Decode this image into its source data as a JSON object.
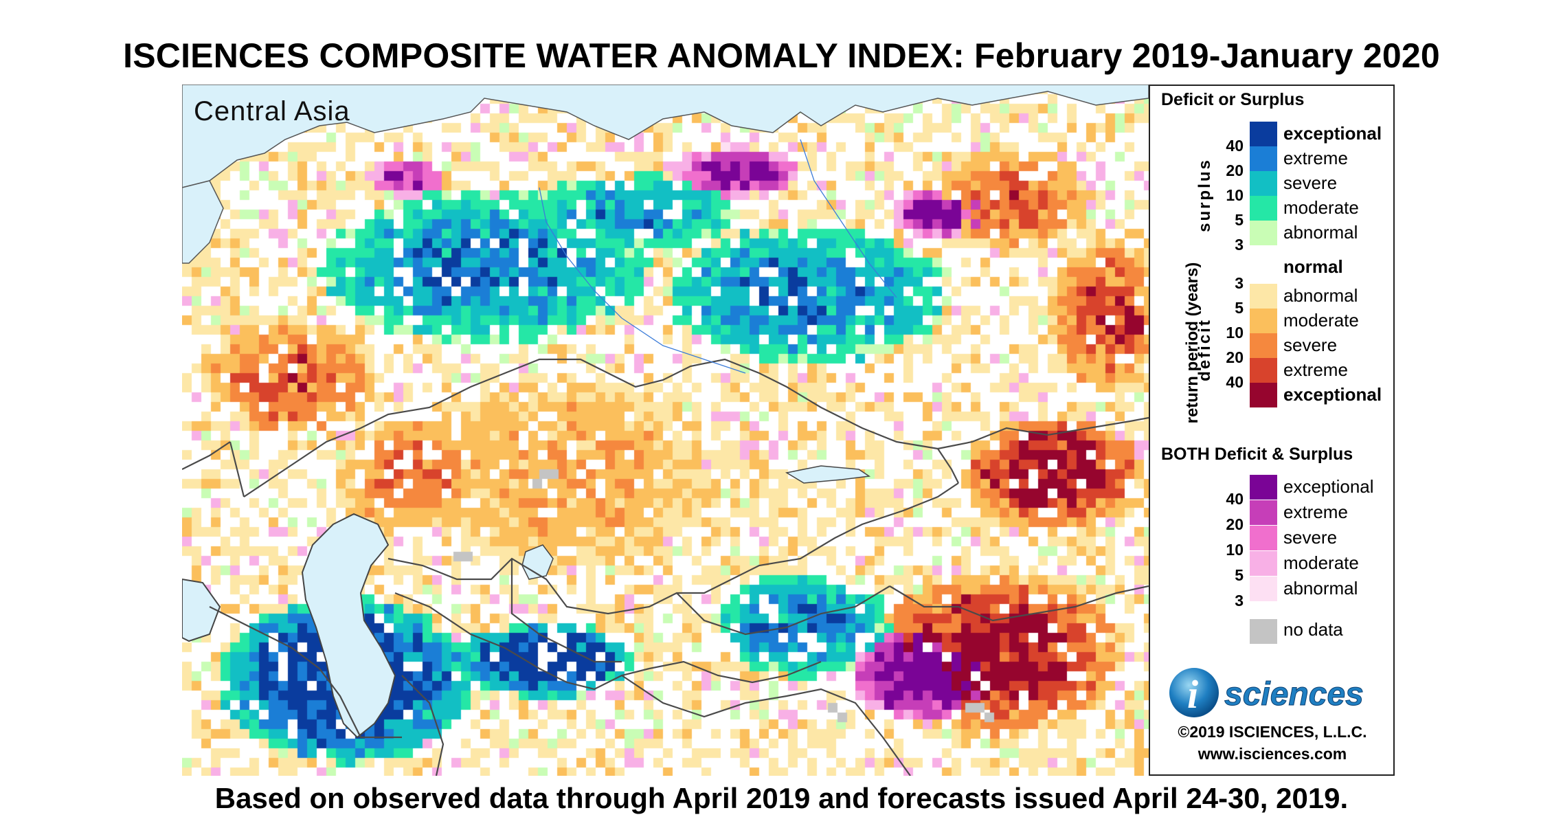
{
  "title": "ISCIENCES COMPOSITE WATER ANOMALY INDEX: February 2019-January 2020",
  "region": "Central Asia",
  "footer": "Based on observed data through April 2019 and forecasts issued April 24-30, 2019.",
  "legend": {
    "deficit_surplus_heading": "Deficit or Surplus",
    "axis_label": "return period (years)",
    "surplus_label": "surplus",
    "deficit_label": "deficit",
    "surplus": [
      {
        "label": "exceptional",
        "color": "#0a3c9e",
        "bold": true
      },
      {
        "label": "extreme",
        "color": "#1b7ed6",
        "bold": false
      },
      {
        "label": "severe",
        "color": "#12bfc4",
        "bold": false
      },
      {
        "label": "moderate",
        "color": "#25e7a6",
        "bold": false
      },
      {
        "label": "abnormal",
        "color": "#c9fdb5",
        "bold": false
      }
    ],
    "surplus_ticks": [
      "40",
      "20",
      "10",
      "5",
      "3"
    ],
    "normal": {
      "label": "normal",
      "color": "#ffffff"
    },
    "deficit": [
      {
        "label": "abnormal",
        "color": "#fde7a7",
        "bold": false
      },
      {
        "label": "moderate",
        "color": "#fbbf5c",
        "bold": false
      },
      {
        "label": "severe",
        "color": "#f5883e",
        "bold": false
      },
      {
        "label": "extreme",
        "color": "#d8432c",
        "bold": false
      },
      {
        "label": "exceptional",
        "color": "#96052e",
        "bold": true
      }
    ],
    "deficit_ticks": [
      "3",
      "5",
      "10",
      "20",
      "40"
    ],
    "both_heading": "BOTH Deficit & Surplus",
    "both": [
      {
        "label": "exceptional",
        "color": "#7a0496"
      },
      {
        "label": "extreme",
        "color": "#c63eb8"
      },
      {
        "label": "severe",
        "color": "#f06fcd"
      },
      {
        "label": "moderate",
        "color": "#f8b0e6"
      },
      {
        "label": "abnormal",
        "color": "#fde0f3"
      }
    ],
    "both_ticks": [
      "40",
      "20",
      "10",
      "5",
      "3"
    ],
    "no_data": {
      "label": "no data",
      "color": "#c4c4c4"
    }
  },
  "logo_text": "sciences",
  "logo_letter": "i",
  "copyright": "©2019 ISCIENCES, L.L.C.",
  "website": "www.isciences.com"
}
